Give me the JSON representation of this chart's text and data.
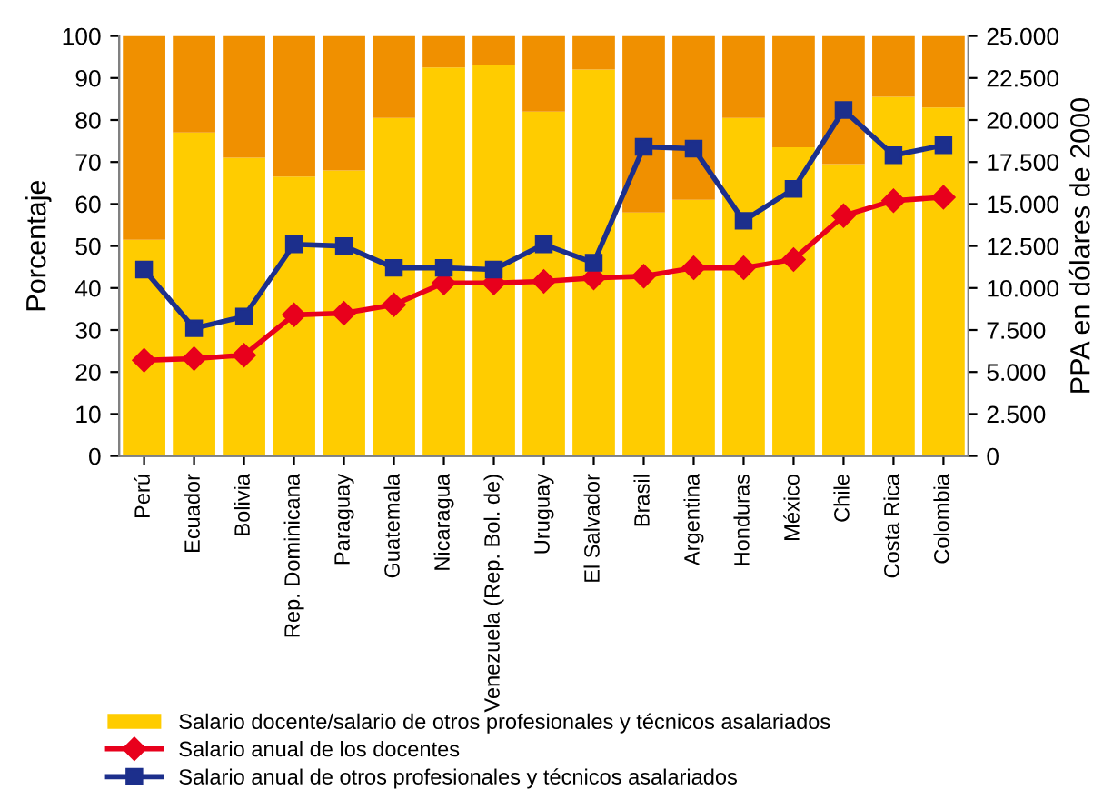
{
  "chart_data": {
    "type": "bar",
    "stacked": true,
    "ylabel": "Porcentaje",
    "y2label": "PPA en dólares de 2000",
    "categories": [
      "Perú",
      "Ecuador",
      "Bolivia",
      "Rep. Dominicana",
      "Paraguay",
      "Guatemala",
      "Nicaragua",
      "Venezuela (Rep. Bol. de)",
      "Uruguay",
      "El Salvador",
      "Brasil",
      "Argentina",
      "Honduras",
      "México",
      "Chile",
      "Costa Rica",
      "Colombia"
    ],
    "series": [
      {
        "name": "Salario docente/salario de otros profesionales y técnicos asalariados",
        "color": "#ffcc00",
        "values": [
          51.5,
          77,
          71,
          66.5,
          68,
          80.5,
          92.5,
          93,
          82,
          92,
          58,
          61,
          80.5,
          73.5,
          69.5,
          85.5,
          83
        ]
      },
      {
        "color": "#f09000",
        "values": [
          48.5,
          23,
          29,
          33.5,
          32,
          19.5,
          7.5,
          7,
          18,
          8,
          42,
          39,
          19.5,
          26.5,
          30.5,
          14.5,
          17
        ]
      },
      {
        "name": "Salario anual de los docentes",
        "type": "line",
        "axis": "y2",
        "color": "#e8001c",
        "marker": "diamond",
        "values": [
          5700,
          5800,
          6000,
          8400,
          8500,
          9000,
          10300,
          10300,
          10400,
          10600,
          10700,
          11200,
          11200,
          11700,
          14300,
          15200,
          15400
        ]
      },
      {
        "name": "Salario anual de otros profesionales y técnicos asalariados",
        "type": "line",
        "axis": "y2",
        "color": "#1c2f8c",
        "marker": "square",
        "values": [
          11100,
          7600,
          8300,
          12600,
          12500,
          11200,
          11200,
          11100,
          12600,
          11500,
          18400,
          18300,
          14000,
          15900,
          20600,
          17900,
          18500
        ]
      }
    ],
    "ylim": [
      0,
      100
    ],
    "yticks": [
      0,
      10,
      20,
      30,
      40,
      50,
      60,
      70,
      80,
      90,
      100
    ],
    "y2lim": [
      0,
      25000
    ],
    "y2ticks": [
      {
        "value": 0,
        "label": "0"
      },
      {
        "value": 2500,
        "label": "2.500"
      },
      {
        "value": 5000,
        "label": "5.000"
      },
      {
        "value": 7500,
        "label": "7.500"
      },
      {
        "value": 10000,
        "label": "10.000"
      },
      {
        "value": 12500,
        "label": "12.500"
      },
      {
        "value": 15000,
        "label": "15.000"
      },
      {
        "value": 17500,
        "label": "17.500"
      },
      {
        "value": 20000,
        "label": "20.000"
      },
      {
        "value": 22500,
        "label": "22.500"
      },
      {
        "value": 25000,
        "label": "25.000"
      }
    ],
    "grid": false,
    "legend": "bottom"
  }
}
